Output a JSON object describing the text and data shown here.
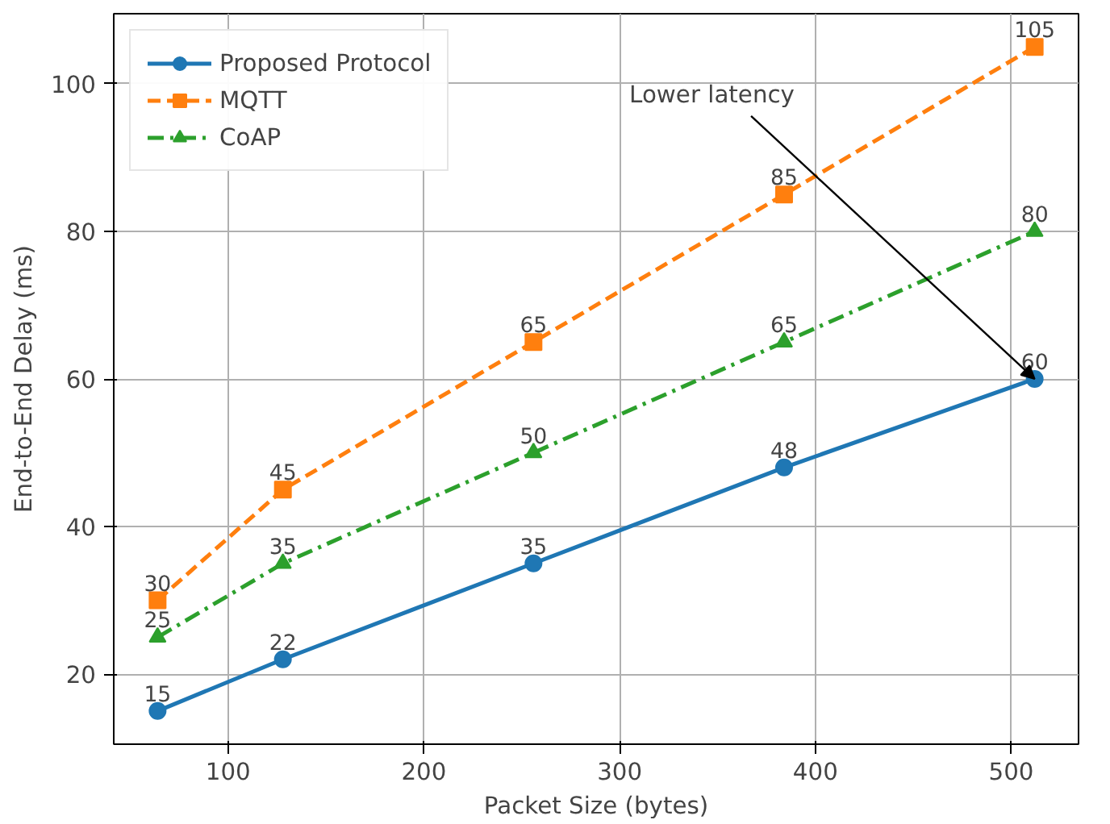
{
  "chart_data": {
    "type": "line",
    "xlabel": "Packet Size (bytes)",
    "ylabel": "End-to-End Delay (ms)",
    "x": [
      64,
      128,
      256,
      384,
      512
    ],
    "series": [
      {
        "name": "Proposed Protocol",
        "color": "#1f77b4",
        "values": [
          15,
          22,
          35,
          48,
          60
        ],
        "marker": "circle",
        "line_style": "solid"
      },
      {
        "name": "MQTT",
        "color": "#ff7f0e",
        "values": [
          30,
          45,
          65,
          85,
          105
        ],
        "marker": "square",
        "line_style": "dashed"
      },
      {
        "name": "CoAP",
        "color": "#2ca02c",
        "values": [
          25,
          35,
          50,
          65,
          80
        ],
        "marker": "triangle",
        "line_style": "dashdot"
      }
    ],
    "xlim": [
      41.6,
      534.4
    ],
    "ylim": [
      10.5,
      109.5
    ],
    "xticks": [
      100,
      200,
      300,
      400,
      500
    ],
    "yticks": [
      20,
      40,
      60,
      80,
      100
    ],
    "grid": true,
    "legend": "top left",
    "data_labels": true,
    "annotations": [
      {
        "text": "Lower latency",
        "x": 512,
        "y": 60
      }
    ]
  }
}
